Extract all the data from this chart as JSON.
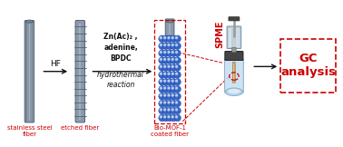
{
  "background_color": "#ffffff",
  "fiber_color": "#8a9aaa",
  "fiber_edge": "#556070",
  "fiber_highlight": "#b0c0cc",
  "mof_sphere_color": "#3366cc",
  "mof_sphere_edge": "#1a3a8a",
  "mof_sphere_highlight": "#6699ee",
  "arrow_color": "#111111",
  "hf_label": "HF",
  "reaction_text": [
    "Zn(Ac)₂ ,",
    "adenine,",
    "BPDC",
    "hydrothermal",
    "reaction"
  ],
  "reaction_bold": [
    true,
    true,
    true,
    false,
    false
  ],
  "spme_label": "SPME",
  "gc_label": "GC\nanalysis",
  "label1": "stainless steel\nfiber",
  "label2": "etched fiber",
  "label3": "Bio-MOF-1\ncoated fiber",
  "label_color": "#cc0000",
  "dashed_color": "#cc0000",
  "syringe_barrel_color": "#c0cfd8",
  "syringe_barrel_light": "#ddeaf2",
  "syringe_dark": "#444444",
  "syringe_rod_color": "#999999",
  "vial_color": "#c8e0f0",
  "vial_edge": "#90aacc",
  "fiber_vial_color": "#ccaa66",
  "fiber_vial_light": "#eedd99",
  "figsize": [
    3.78,
    1.62
  ],
  "dpi": 100,
  "xlim": [
    0,
    10
  ],
  "ylim": [
    0,
    4.2
  ]
}
